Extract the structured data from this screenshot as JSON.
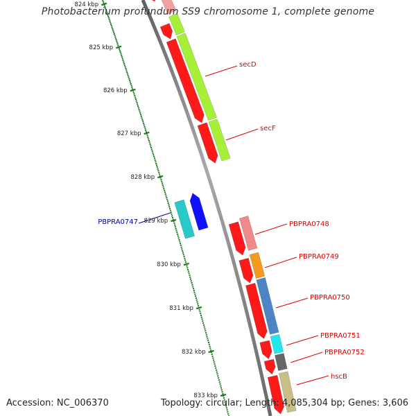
{
  "title": "Photobacterium profundum SS9 chromosome 1, complete genome",
  "footer": {
    "accession_label": "Accession:",
    "accession": "NC_006370",
    "topology_label": "Topology:",
    "topology": "circular",
    "length_label": "Length:",
    "length": "4,085,304 bp",
    "genes_label": "Genes:",
    "genes": "3,606"
  },
  "colors": {
    "backbone": "#8a8a8a",
    "tick_mark": "#1e7a1e",
    "label_red": "#dd0000",
    "label_blue": "#00009c"
  },
  "tick_labels": [
    "824 kbp",
    "825 kbp",
    "826 kbp",
    "827 kbp",
    "828 kbp",
    "829 kbp",
    "830 kbp",
    "831 kbp",
    "832 kbp",
    "833 kbp"
  ],
  "gene_labels": [
    {
      "text": "secD",
      "color": "#dd0000"
    },
    {
      "text": "secF",
      "color": "#dd0000"
    },
    {
      "text": "PBPRA0747",
      "color": "#00009c"
    },
    {
      "text": "PBPRA0748",
      "color": "#dd0000"
    },
    {
      "text": "PBPRA0749",
      "color": "#dd0000"
    },
    {
      "text": "PBPRA0750",
      "color": "#dd0000"
    },
    {
      "text": "PBPRA0751",
      "color": "#dd0000"
    },
    {
      "text": "PBPRA0752",
      "color": "#dd0000"
    },
    {
      "text": "hscB",
      "color": "#dd0000"
    }
  ],
  "feature_colors": {
    "cds": "#ff1a1a",
    "cds_minus": "#1010ff",
    "secD_band": "#a6f03a",
    "PBPRA0747_band": "#27c9c9",
    "PBPRA0748_band": "#f08a8a",
    "PBPRA0749_band": "#f59a1c",
    "PBPRA0750_band": "#4d85c4",
    "PBPRA0751_band": "#22e8ee",
    "PBPRA0752_band": "#666666",
    "hscB_band": "#c8be86",
    "top_band": "#f5a0a0"
  }
}
